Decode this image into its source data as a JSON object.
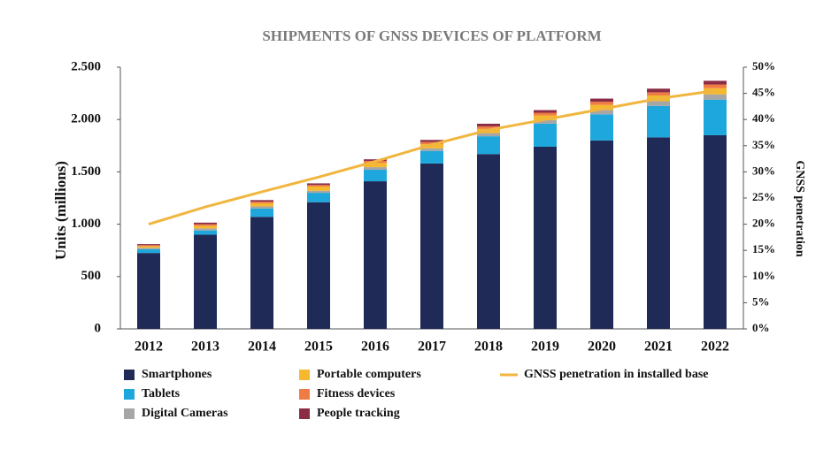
{
  "chart_data": {
    "type": "bar",
    "stacked": true,
    "title": "SHIPMENTS OF GNSS DEVICES OF PLATFORM",
    "y_label": "Units (millions)",
    "y2_label": "GNSS penetration",
    "categories": [
      "2012",
      "2013",
      "2014",
      "2015",
      "2016",
      "2017",
      "2018",
      "2019",
      "2020",
      "2021",
      "2022"
    ],
    "series": [
      {
        "name": "Smartphones",
        "color": "#1f2a56",
        "values": [
          725,
          900,
          1070,
          1210,
          1410,
          1580,
          1670,
          1740,
          1800,
          1830,
          1850
        ]
      },
      {
        "name": "Tablets",
        "color": "#1ea7dc",
        "values": [
          35,
          40,
          80,
          90,
          110,
          120,
          170,
          220,
          250,
          300,
          340
        ]
      },
      {
        "name": "Digital Cameras",
        "color": "#a6a6a6",
        "values": [
          15,
          20,
          20,
          20,
          25,
          25,
          30,
          35,
          40,
          45,
          50
        ]
      },
      {
        "name": "Portable computers",
        "color": "#f5b82e",
        "values": [
          15,
          25,
          30,
          40,
          40,
          40,
          40,
          45,
          50,
          55,
          60
        ]
      },
      {
        "name": "Fitness devices",
        "color": "#ef7b45",
        "values": [
          10,
          15,
          15,
          15,
          20,
          20,
          25,
          25,
          30,
          30,
          35
        ]
      },
      {
        "name": "People tracking",
        "color": "#8b2c45",
        "values": [
          10,
          15,
          15,
          15,
          15,
          20,
          25,
          25,
          30,
          35,
          35
        ]
      },
      {
        "name": "GNSS penetration in installed base",
        "color": "#f0b63f",
        "axis": "y2",
        "type": "line",
        "values": [
          20,
          23.3,
          26.2,
          29,
          32,
          35.2,
          38,
          40,
          42,
          44,
          45.5
        ]
      }
    ],
    "ylim": [
      0,
      2500
    ],
    "yticks": [
      {
        "value": 0,
        "label": "0"
      },
      500,
      {
        "value": 1000,
        "label": "1.000"
      },
      {
        "value": 1500,
        "label": "1.500"
      },
      {
        "value": 2000,
        "label": "2.000"
      },
      {
        "value": 2500,
        "label": "2.500"
      }
    ],
    "y2lim": [
      0,
      50
    ],
    "y2ticks": [
      {
        "value": 0,
        "label": "0%"
      },
      {
        "value": 5,
        "label": "5%"
      },
      {
        "value": 10,
        "label": "10%"
      },
      {
        "value": 15,
        "label": "15%"
      },
      {
        "value": 20,
        "label": "20%"
      },
      {
        "value": 25,
        "label": "25%"
      },
      {
        "value": 30,
        "label": "30%"
      },
      {
        "value": 35,
        "label": "35%"
      },
      {
        "value": 40,
        "label": "40%"
      },
      {
        "value": 45,
        "label": "45%"
      },
      {
        "value": 50,
        "label": "50%"
      }
    ],
    "grid": false
  }
}
